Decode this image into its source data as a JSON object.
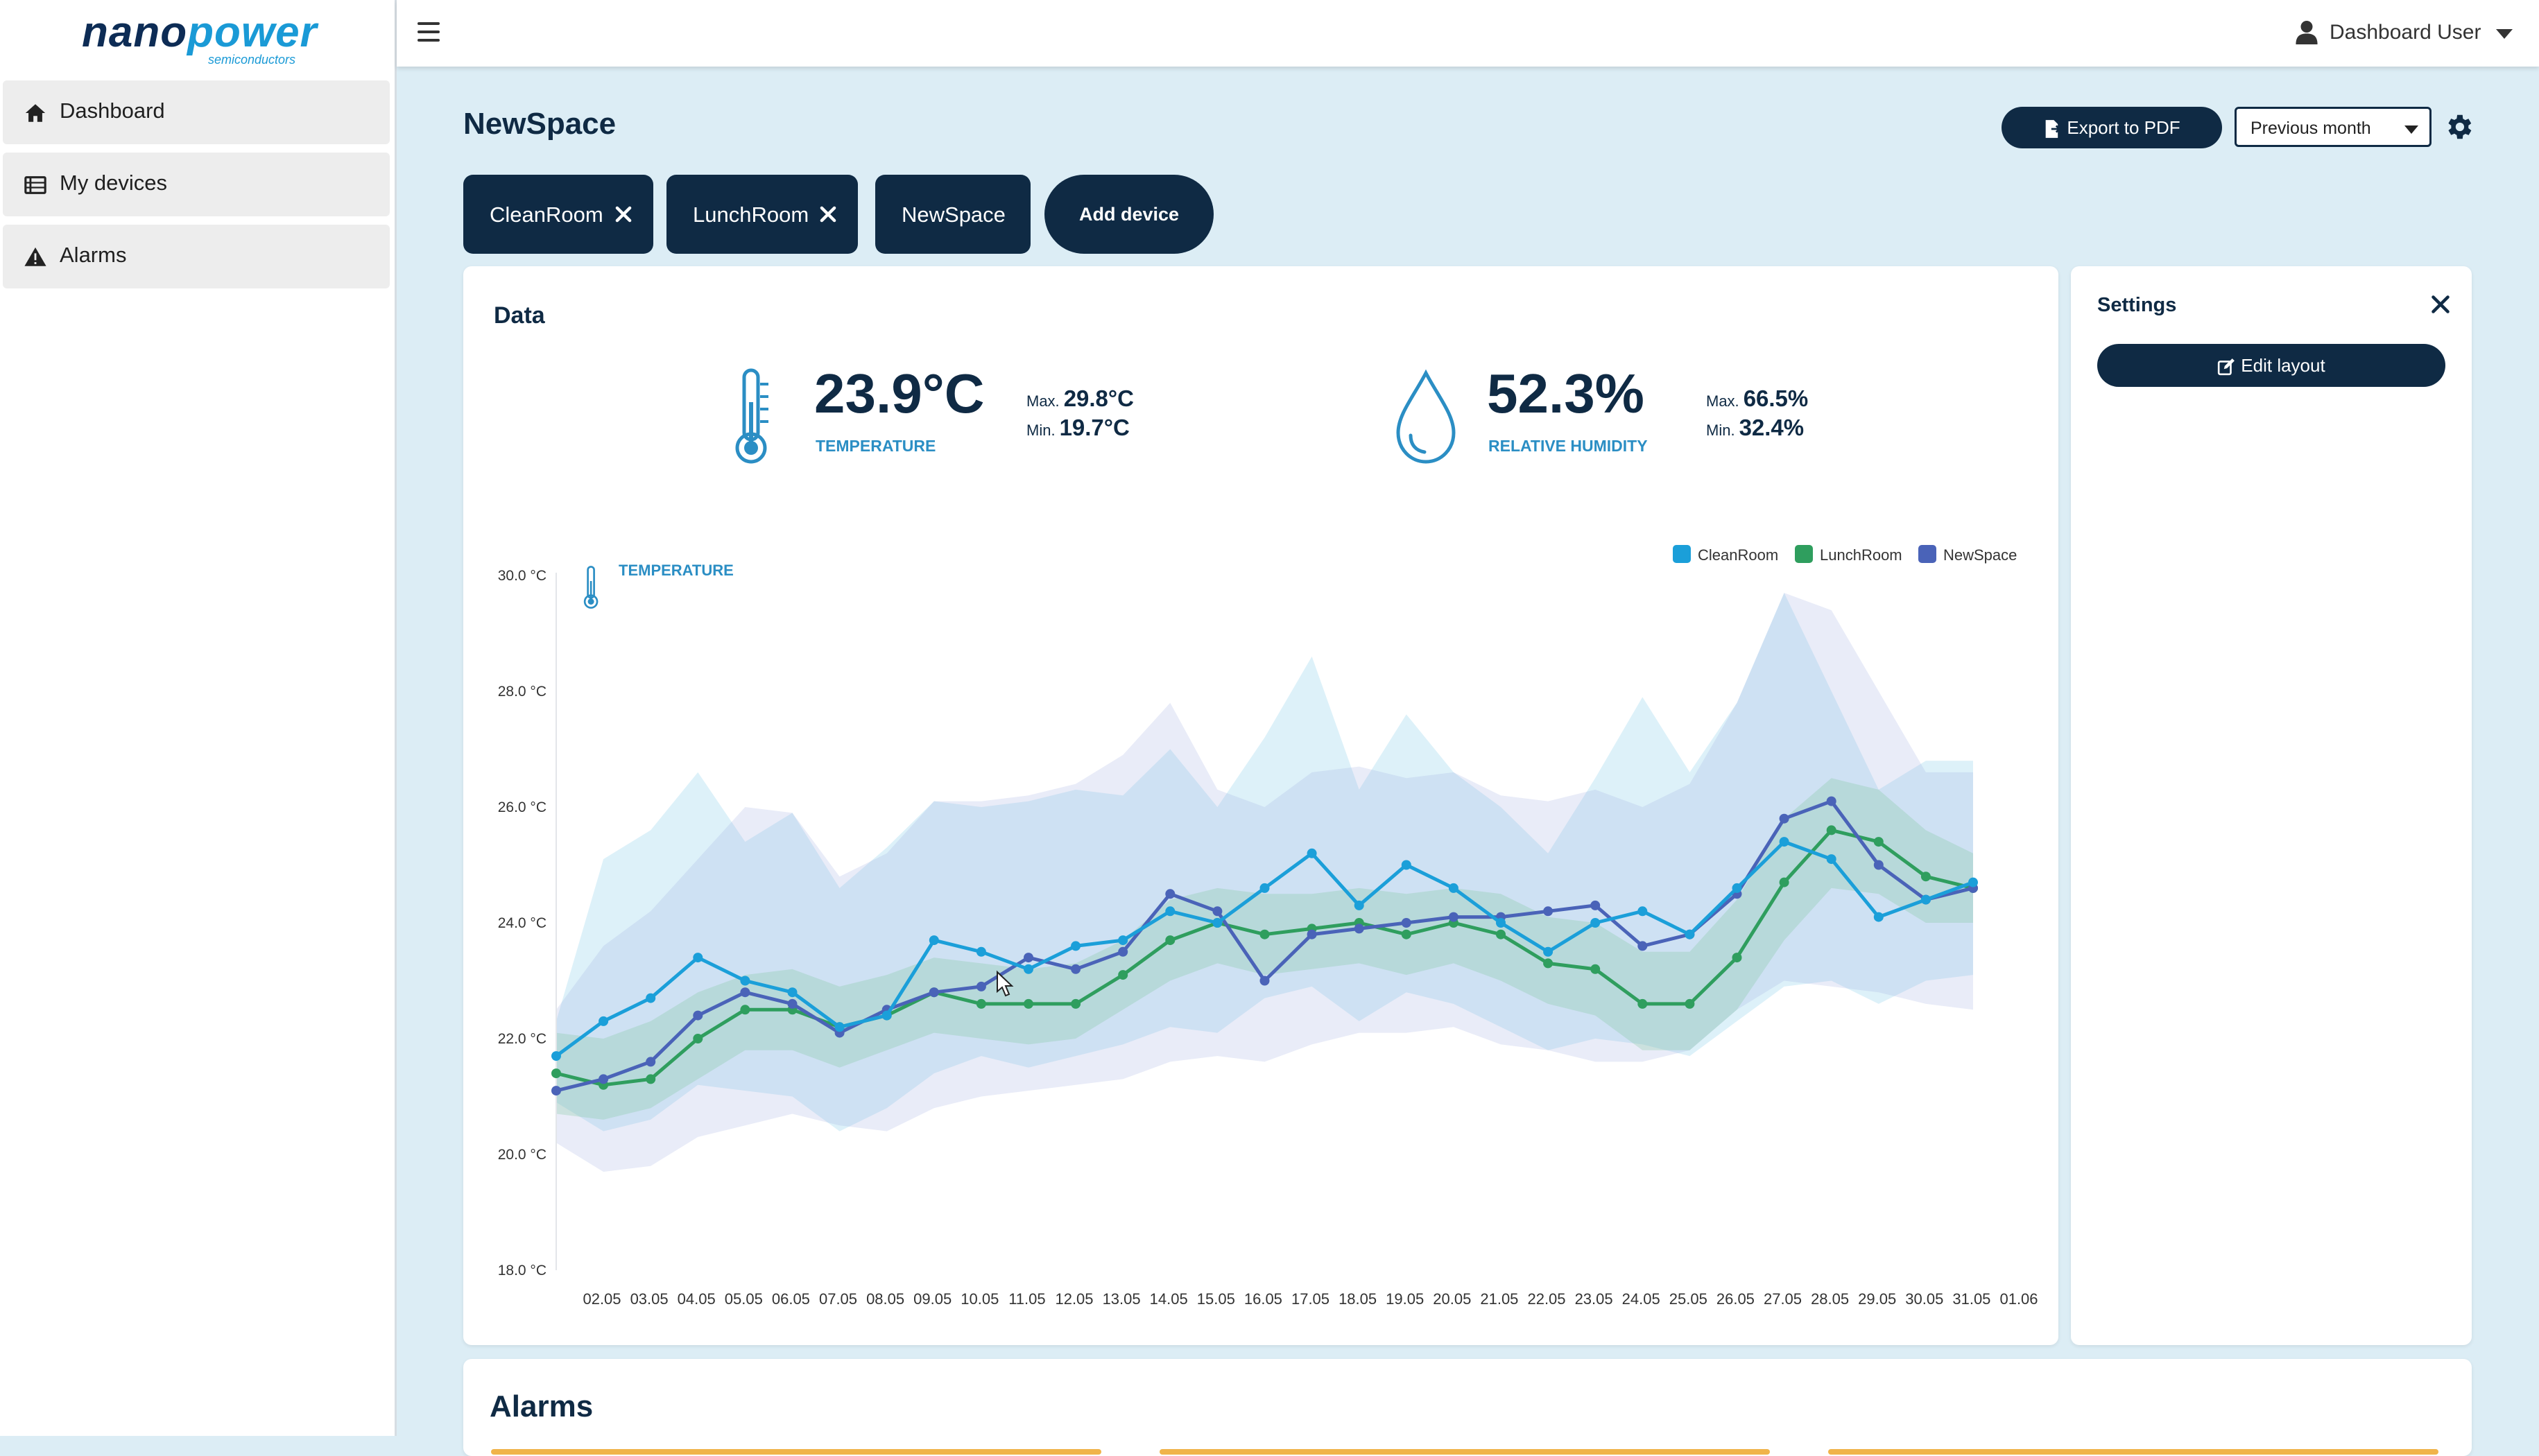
{
  "brand": {
    "logo_main_a": "nano",
    "logo_main_b": "power",
    "logo_sub": "semiconductors"
  },
  "sidebar": {
    "items": [
      {
        "label": "Dashboard",
        "icon": "home-icon"
      },
      {
        "label": "My devices",
        "icon": "list-icon"
      },
      {
        "label": "Alarms",
        "icon": "warning-icon"
      }
    ]
  },
  "topbar": {
    "user_label": "Dashboard User"
  },
  "page": {
    "title": "NewSpace",
    "export_label": "Export to PDF",
    "period_selected": "Previous month"
  },
  "tags": [
    {
      "label": "CleanRoom",
      "removable": true
    },
    {
      "label": "LunchRoom",
      "removable": true
    },
    {
      "label": "NewSpace",
      "removable": false
    }
  ],
  "add_device_label": "Add device",
  "data_card": {
    "title": "Data",
    "temperature": {
      "value": "23.9°C",
      "caption": "TEMPERATURE",
      "max_label": "Max.",
      "max": "29.8°C",
      "min_label": "Min.",
      "min": "19.7°C"
    },
    "humidity": {
      "value": "52.3%",
      "caption": "RELATIVE HUMIDITY",
      "max_label": "Max.",
      "max": "66.5%",
      "min_label": "Min.",
      "min": "32.4%"
    }
  },
  "settings": {
    "title": "Settings",
    "edit_layout_label": "Edit layout"
  },
  "alarms": {
    "title": "Alarms"
  },
  "colors": {
    "navy": "#0f2a44",
    "accent": "#2b8ec4",
    "cleanroom": "#1b9fd9",
    "lunchroom": "#2f9e5e",
    "newspace": "#4a63b8"
  },
  "chart_data": {
    "type": "line",
    "title": "TEMPERATURE",
    "ylim": [
      18,
      30
    ],
    "yticks": [
      "30.0 °C",
      "28.0 °C",
      "26.0 °C",
      "24.0 °C",
      "22.0 °C",
      "20.0 °C",
      "18.0 °C"
    ],
    "ytick_values": [
      30,
      28,
      26,
      24,
      22,
      20,
      18
    ],
    "categories": [
      "02.05",
      "03.05",
      "04.05",
      "05.05",
      "06.05",
      "07.05",
      "08.05",
      "09.05",
      "10.05",
      "11.05",
      "12.05",
      "13.05",
      "14.05",
      "15.05",
      "16.05",
      "17.05",
      "18.05",
      "19.05",
      "20.05",
      "21.05",
      "22.05",
      "23.05",
      "24.05",
      "25.05",
      "26.05",
      "27.05",
      "28.05",
      "29.05",
      "30.05",
      "31.05",
      "01.06"
    ],
    "legend_position": "top-right",
    "series": [
      {
        "name": "CleanRoom",
        "values": [
          21.7,
          22.3,
          22.7,
          23.4,
          23.0,
          22.8,
          22.2,
          22.4,
          23.7,
          23.5,
          23.2,
          23.6,
          23.7,
          24.2,
          24.0,
          24.6,
          25.2,
          24.3,
          25.0,
          24.6,
          24.0,
          23.5,
          24.0,
          24.2,
          23.8,
          24.6,
          25.4,
          25.1,
          24.1,
          24.4,
          24.7
        ],
        "max": [
          22.3,
          25.1,
          25.6,
          26.6,
          25.4,
          25.9,
          24.6,
          25.3,
          26.1,
          26.0,
          26.1,
          26.3,
          26.2,
          27.0,
          26.0,
          27.2,
          28.6,
          26.3,
          27.6,
          26.6,
          26.0,
          25.2,
          26.5,
          27.9,
          26.6,
          27.8,
          29.7,
          28.0,
          26.3,
          26.8,
          26.8
        ],
        "min": [
          20.9,
          20.4,
          20.6,
          21.2,
          21.1,
          21.0,
          20.4,
          20.8,
          21.4,
          21.7,
          21.5,
          21.7,
          21.9,
          22.2,
          22.1,
          22.7,
          22.9,
          22.3,
          22.8,
          22.6,
          22.2,
          21.8,
          22.0,
          21.9,
          21.7,
          22.3,
          22.9,
          23.0,
          22.6,
          23.0,
          23.1
        ]
      },
      {
        "name": "LunchRoom",
        "values": [
          21.4,
          21.2,
          21.3,
          22.0,
          22.5,
          22.5,
          22.2,
          22.4,
          22.8,
          22.6,
          22.6,
          22.6,
          23.1,
          23.7,
          24.0,
          23.8,
          23.9,
          24.0,
          23.8,
          24.0,
          23.8,
          23.3,
          23.2,
          22.6,
          22.6,
          23.4,
          24.7,
          25.6,
          25.4,
          24.8,
          24.6
        ],
        "max": [
          22.1,
          22.0,
          22.3,
          22.8,
          23.1,
          23.2,
          22.9,
          23.1,
          23.4,
          23.3,
          23.2,
          23.3,
          23.7,
          24.4,
          24.6,
          24.5,
          24.5,
          24.6,
          24.5,
          24.6,
          24.5,
          24.1,
          24.0,
          23.5,
          23.5,
          24.4,
          25.8,
          26.5,
          26.3,
          25.6,
          25.2
        ],
        "min": [
          20.7,
          20.6,
          20.8,
          21.3,
          21.8,
          21.8,
          21.5,
          21.8,
          22.1,
          22.0,
          21.9,
          22.0,
          22.5,
          23.0,
          23.3,
          23.1,
          23.2,
          23.3,
          23.1,
          23.3,
          23.0,
          22.6,
          22.4,
          21.8,
          21.8,
          22.5,
          23.7,
          24.6,
          24.5,
          24.0,
          24.0
        ]
      },
      {
        "name": "NewSpace",
        "values": [
          21.1,
          21.3,
          21.6,
          22.4,
          22.8,
          22.6,
          22.1,
          22.5,
          22.8,
          22.9,
          23.4,
          23.2,
          23.5,
          24.5,
          24.2,
          23.0,
          23.8,
          23.9,
          24.0,
          24.1,
          24.1,
          24.2,
          24.3,
          23.6,
          23.8,
          24.5,
          25.8,
          26.1,
          25.0,
          24.4,
          24.6
        ],
        "max": [
          22.5,
          23.6,
          24.2,
          25.1,
          26.0,
          25.9,
          24.8,
          25.2,
          26.1,
          26.1,
          26.2,
          26.4,
          26.9,
          27.8,
          26.3,
          26.0,
          26.6,
          26.7,
          26.5,
          26.6,
          26.2,
          26.1,
          26.3,
          26.0,
          26.4,
          27.8,
          29.7,
          29.4,
          28.0,
          26.6,
          26.6
        ],
        "min": [
          20.2,
          19.7,
          19.8,
          20.3,
          20.5,
          20.7,
          20.5,
          20.4,
          20.8,
          21.0,
          21.1,
          21.2,
          21.3,
          21.6,
          21.7,
          21.6,
          21.9,
          22.1,
          22.1,
          22.2,
          21.9,
          21.8,
          21.6,
          21.6,
          21.8,
          22.5,
          23.0,
          22.9,
          22.8,
          22.6,
          22.5
        ]
      }
    ]
  }
}
